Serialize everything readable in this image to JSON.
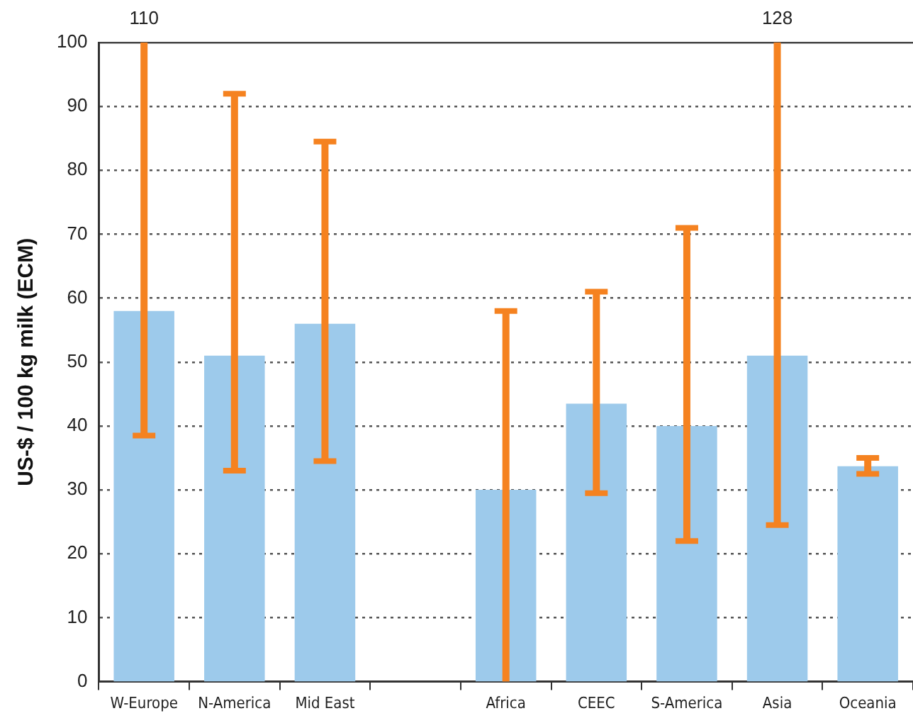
{
  "chart_data": {
    "type": "bar",
    "ylabel": "US-$ / 100 kg milk (ECM)",
    "categories": [
      "W-Europe",
      "N-America",
      "Mid East",
      null,
      "Africa",
      "CEEC",
      "S-America",
      "Asia",
      "Oceania"
    ],
    "series": [
      {
        "color": "#9dcaeb",
        "values": [
          58,
          51,
          56,
          null,
          30,
          43.5,
          40,
          51,
          33.7
        ],
        "errors": [
          [
            38.5,
            100
          ],
          [
            33,
            92
          ],
          [
            34.5,
            84.5
          ],
          null,
          [
            0,
            58
          ],
          [
            29.5,
            61
          ],
          [
            22,
            71
          ],
          [
            24.5,
            100
          ],
          [
            32.5,
            35
          ]
        ]
      }
    ],
    "ylim": [
      0,
      100
    ],
    "yticks": [
      0,
      10,
      20,
      30,
      40,
      50,
      60,
      70,
      80,
      90,
      100
    ],
    "grid": "y",
    "legend": false,
    "annotations": [
      {
        "text": "110",
        "x": "W-Europe",
        "y": 100
      },
      {
        "text": "128",
        "x": "Asia",
        "y": 100
      }
    ]
  }
}
